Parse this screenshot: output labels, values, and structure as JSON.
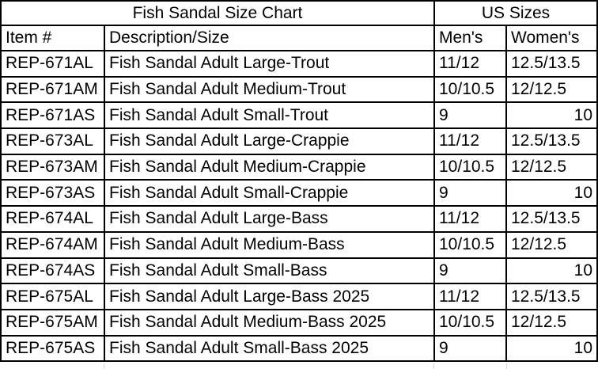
{
  "sheet": {
    "title": "Fish Sandal Size Chart",
    "us_sizes_label": "US Sizes",
    "columns": [
      "Item #",
      "Description/Size",
      "Men's",
      "Women's"
    ],
    "rows": [
      [
        "REP-671AL",
        "Fish Sandal Adult Large-Trout",
        "11/12",
        "12.5/13.5"
      ],
      [
        "REP-671AM",
        "Fish Sandal Adult Medium-Trout",
        "10/10.5",
        "12/12.5"
      ],
      [
        "REP-671AS",
        "Fish Sandal Adult Small-Trout",
        "9",
        "10"
      ],
      [
        "REP-673AL",
        "Fish Sandal Adult Large-Crappie",
        "11/12",
        "12.5/13.5"
      ],
      [
        "REP-673AM",
        "Fish Sandal Adult Medium-Crappie",
        "10/10.5",
        "12/12.5"
      ],
      [
        "REP-673AS",
        "Fish Sandal Adult Small-Crappie",
        "9",
        "10"
      ],
      [
        "REP-674AL",
        "Fish Sandal Adult Large-Bass",
        "11/12",
        "12.5/13.5"
      ],
      [
        "REP-674AM",
        "Fish Sandal Adult Medium-Bass",
        "10/10.5",
        "12/12.5"
      ],
      [
        "REP-674AS",
        "Fish Sandal Adult Small-Bass",
        "9",
        "10"
      ],
      [
        "REP-675AL",
        "Fish Sandal Adult Large-Bass 2025",
        "11/12",
        "12.5/13.5"
      ],
      [
        "REP-675AM",
        "Fish Sandal Adult Medium-Bass 2025",
        "10/10.5",
        "12/12.5"
      ],
      [
        "REP-675AS",
        "Fish Sandal Adult Small-Bass 2025",
        "9",
        "10"
      ]
    ],
    "colors": {
      "border": "#000000",
      "text": "#000000",
      "background": "#ffffff",
      "gridline": "#d6d6d6"
    }
  }
}
